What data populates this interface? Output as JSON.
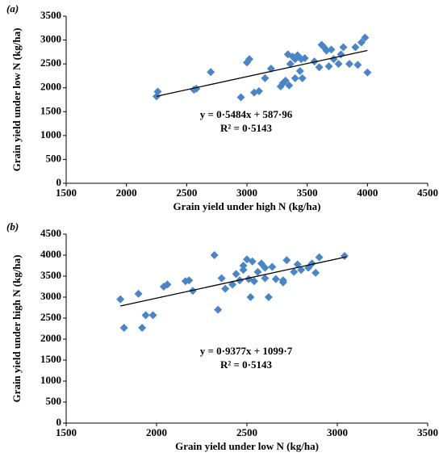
{
  "chart_data": [
    {
      "type": "scatter",
      "panel_label": "(a)",
      "xlabel": "Grain yield under high N (kg/ha)",
      "ylabel": "Grain yield under low N (kg/ha)",
      "color": "#4a86c5",
      "x": [
        2250,
        2260,
        2560,
        2580,
        2700,
        2950,
        3000,
        3020,
        3060,
        3100,
        3150,
        3200,
        3280,
        3300,
        3320,
        3340,
        3360,
        3380,
        3400,
        3400,
        3420,
        3440,
        3450,
        3460,
        3560,
        3600,
        3620,
        3640,
        3660,
        3680,
        3700,
        3720,
        3760,
        3780,
        3800,
        3850,
        3900,
        3920,
        3950,
        3980,
        4000,
        3350,
        3480
      ],
      "values": [
        1820,
        1920,
        1960,
        1980,
        2330,
        1800,
        2530,
        2600,
        1900,
        1930,
        2200,
        2400,
        2030,
        2100,
        2150,
        2700,
        2500,
        2650,
        2600,
        2200,
        2680,
        2350,
        2600,
        2200,
        2550,
        2430,
        2900,
        2850,
        2780,
        2450,
        2800,
        2600,
        2500,
        2700,
        2850,
        2500,
        2850,
        2480,
        2950,
        3050,
        2320,
        2050,
        2620
      ],
      "trendline": {
        "x": [
          2250,
          4000
        ],
        "y": [
          1822,
          2782
        ]
      },
      "annotations": [
        "y = 0·5484x + 587·96",
        "R² = 0·5143"
      ],
      "xlim": [
        1500,
        4500
      ],
      "xticks": [
        1500,
        2000,
        2500,
        3000,
        3500,
        4000,
        4500
      ],
      "ylim": [
        0,
        3500
      ],
      "yticks": [
        0,
        500,
        1000,
        1500,
        2000,
        2500,
        3000,
        3500
      ]
    },
    {
      "type": "scatter",
      "panel_label": "(b)",
      "xlabel": "Grain yield under low N (kg/ha)",
      "ylabel": "Grain yield under high N (kg/ha)",
      "color": "#4a86c5",
      "x": [
        1800,
        1820,
        1900,
        1920,
        1940,
        1980,
        2040,
        2060,
        2160,
        2180,
        2200,
        2320,
        2340,
        2360,
        2380,
        2420,
        2440,
        2460,
        2480,
        2480,
        2500,
        2510,
        2520,
        2530,
        2540,
        2560,
        2580,
        2600,
        2600,
        2620,
        2640,
        2660,
        2700,
        2720,
        2760,
        2780,
        2800,
        2840,
        2860,
        2880,
        2900,
        3040,
        2700
      ],
      "values": [
        2950,
        2270,
        3080,
        2270,
        2570,
        2570,
        3250,
        3300,
        3380,
        3400,
        3150,
        4000,
        2700,
        3450,
        3200,
        3300,
        3550,
        3400,
        3650,
        3750,
        3900,
        3430,
        3000,
        3850,
        3380,
        3600,
        3800,
        3700,
        3450,
        3000,
        3720,
        3430,
        3350,
        3880,
        3600,
        3780,
        3650,
        3700,
        3800,
        3580,
        3950,
        3980,
        3400
      ],
      "trendline": {
        "x": [
          1800,
          3050
        ],
        "y": [
          2788,
          3960
        ]
      },
      "annotations": [
        "y = 0·9377x + 1099·7",
        "R² = 0·5143"
      ],
      "xlim": [
        1500,
        3500
      ],
      "xticks": [
        1500,
        2000,
        2500,
        3000,
        3500
      ],
      "ylim": [
        0,
        4500
      ],
      "yticks": [
        0,
        500,
        1000,
        1500,
        2000,
        2500,
        3000,
        3500,
        4000,
        4500
      ]
    }
  ]
}
